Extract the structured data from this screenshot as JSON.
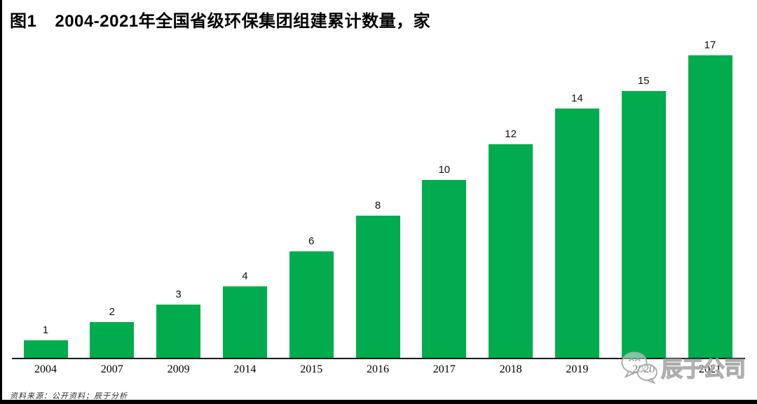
{
  "page": {
    "background": "#ffffff",
    "accent_green": "#00AC4E"
  },
  "header": {
    "figure_label": "图1",
    "title": "2004-2021年全国省级环保集团组建累计数量，家"
  },
  "chart_data": {
    "type": "bar",
    "title": "图1 2004-2021年全国省级环保集团组建累计数量，家",
    "categories": [
      "2004",
      "2007",
      "2009",
      "2014",
      "2015",
      "2016",
      "2017",
      "2018",
      "2019",
      "2020",
      "2021"
    ],
    "values": [
      1,
      2,
      3,
      4,
      6,
      8,
      10,
      12,
      14,
      15,
      17
    ],
    "xlabel": "",
    "ylabel": "",
    "unit_label": "家",
    "ylim": [
      0,
      18
    ],
    "bar_color": "#00AC4E",
    "value_labels_shown": true,
    "grid": false,
    "legend_position": "none",
    "y_axis_shown": false
  },
  "footer": {
    "source_note": "资料来源：公开资料；辰于分析"
  },
  "watermark": {
    "icon": "wechat-icon",
    "text": "辰于公司"
  }
}
